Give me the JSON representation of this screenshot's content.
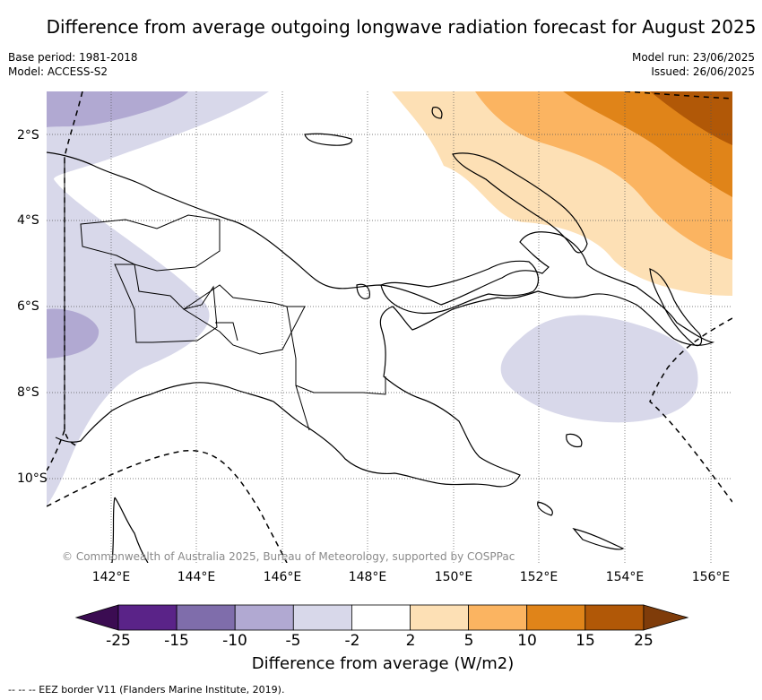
{
  "title": "Difference from average outgoing longwave radiation forecast for August 2025",
  "meta_left": {
    "base_period": "Base period: 1981-2018",
    "model": "Model: ACCESS-S2"
  },
  "meta_right": {
    "model_run": "Model run: 23/06/2025",
    "issued": "Issued: 26/06/2025"
  },
  "copyright": "© Commonwealth of Australia 2025, Bureau of Meteorology, supported by COSPPac",
  "map": {
    "lon_labels": [
      "142°E",
      "144°E",
      "146°E",
      "148°E",
      "150°E",
      "152°E",
      "154°E",
      "156°E"
    ],
    "lat_labels": [
      "2°S",
      "4°S",
      "6°S",
      "8°S",
      "10°S"
    ],
    "gridlines": "dotted",
    "features": [
      "coastlines",
      "province-borders",
      "eez-border"
    ]
  },
  "colorbar": {
    "label": "Difference from average (W/m2)",
    "ticks": [
      "-25",
      "-15",
      "-10",
      "-5",
      "-2",
      "2",
      "5",
      "10",
      "15",
      "25"
    ],
    "colors": [
      "#3b0c52",
      "#5a2388",
      "#7f6dab",
      "#b1a9d2",
      "#d8d8ea",
      "#ffffff",
      "#fde0b5",
      "#fbb461",
      "#e08419",
      "#b15807",
      "#7f3c0a"
    ]
  },
  "legend_note": "-- -- -- EEZ border V11 (Flanders Marine Institute, 2019)."
}
